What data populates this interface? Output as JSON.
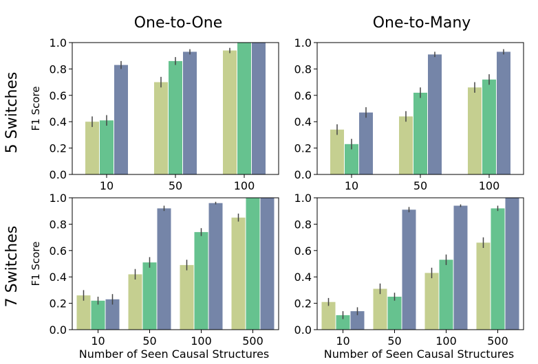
{
  "column_titles": [
    "One-to-One",
    "One-to-Many"
  ],
  "row_titles": [
    "5 Switches",
    "7 Switches"
  ],
  "colors": [
    "#c5cf90",
    "#66c28f",
    "#7585a8"
  ],
  "chart_data": [
    {
      "type": "bar",
      "ylabel": "F1 Score",
      "xlabel": "",
      "ylim": [
        0,
        1.0
      ],
      "yticks": [
        "0.0",
        "0.2",
        "0.4",
        "0.6",
        "0.8",
        "1.0"
      ],
      "categories": [
        "10",
        "50",
        "100"
      ],
      "series": [
        {
          "values": [
            0.4,
            0.7,
            0.94
          ],
          "errors": [
            0.04,
            0.04,
            0.02
          ]
        },
        {
          "values": [
            0.41,
            0.86,
            1.0
          ],
          "errors": [
            0.04,
            0.03,
            0.0
          ]
        },
        {
          "values": [
            0.83,
            0.93,
            1.0
          ],
          "errors": [
            0.03,
            0.02,
            0.0
          ]
        }
      ]
    },
    {
      "type": "bar",
      "ylabel": "",
      "xlabel": "",
      "ylim": [
        0,
        1.0
      ],
      "yticks": [
        "0.0",
        "0.2",
        "0.4",
        "0.6",
        "0.8",
        "1.0"
      ],
      "categories": [
        "10",
        "50",
        "100"
      ],
      "series": [
        {
          "values": [
            0.34,
            0.44,
            0.66
          ],
          "errors": [
            0.04,
            0.04,
            0.04
          ]
        },
        {
          "values": [
            0.23,
            0.62,
            0.72
          ],
          "errors": [
            0.04,
            0.04,
            0.04
          ]
        },
        {
          "values": [
            0.47,
            0.91,
            0.93
          ],
          "errors": [
            0.04,
            0.02,
            0.02
          ]
        }
      ]
    },
    {
      "type": "bar",
      "ylabel": "F1 Score",
      "xlabel": "Number of Seen Causal Structures",
      "ylim": [
        0,
        1.0
      ],
      "yticks": [
        "0.0",
        "0.2",
        "0.4",
        "0.6",
        "0.8",
        "1.0"
      ],
      "categories": [
        "10",
        "50",
        "100",
        "500"
      ],
      "series": [
        {
          "values": [
            0.26,
            0.42,
            0.49,
            0.85
          ],
          "errors": [
            0.04,
            0.04,
            0.04,
            0.03
          ]
        },
        {
          "values": [
            0.22,
            0.51,
            0.74,
            1.0
          ],
          "errors": [
            0.03,
            0.04,
            0.03,
            0.0
          ]
        },
        {
          "values": [
            0.23,
            0.92,
            0.96,
            1.0
          ],
          "errors": [
            0.04,
            0.02,
            0.01,
            0.0
          ]
        }
      ]
    },
    {
      "type": "bar",
      "ylabel": "",
      "xlabel": "Number of Seen Causal Structures",
      "ylim": [
        0,
        1.0
      ],
      "yticks": [
        "0.0",
        "0.2",
        "0.4",
        "0.6",
        "0.8",
        "1.0"
      ],
      "categories": [
        "10",
        "50",
        "100",
        "500"
      ],
      "series": [
        {
          "values": [
            0.21,
            0.31,
            0.43,
            0.66
          ],
          "errors": [
            0.03,
            0.04,
            0.04,
            0.04
          ]
        },
        {
          "values": [
            0.11,
            0.25,
            0.53,
            0.92
          ],
          "errors": [
            0.03,
            0.03,
            0.04,
            0.02
          ]
        },
        {
          "values": [
            0.14,
            0.91,
            0.94,
            1.0
          ],
          "errors": [
            0.03,
            0.02,
            0.01,
            0.0
          ]
        }
      ]
    }
  ]
}
